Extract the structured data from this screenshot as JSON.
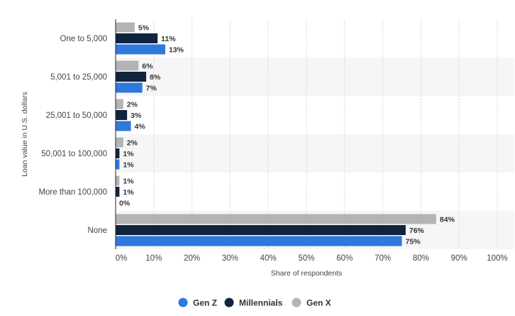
{
  "chart_data": {
    "type": "bar",
    "orientation": "horizontal",
    "categories": [
      "One to 5,000",
      "5,001 to 25,000",
      "25,001 to 50,000",
      "50,001 to 100,000",
      "More than 100,000",
      "None"
    ],
    "series": [
      {
        "name": "Gen X",
        "color": "#b4b4b4",
        "values": [
          5,
          6,
          2,
          2,
          1,
          84
        ],
        "labels": [
          "5%",
          "6%",
          "2%",
          "2%",
          "1%",
          "84%"
        ]
      },
      {
        "name": "Millennials",
        "color": "#10243e",
        "values": [
          11,
          8,
          3,
          1,
          1,
          76
        ],
        "labels": [
          "11%",
          "8%",
          "3%",
          "1%",
          "1%",
          "76%"
        ]
      },
      {
        "name": "Gen Z",
        "color": "#2f78dc",
        "values": [
          13,
          7,
          4,
          1,
          0,
          75
        ],
        "labels": [
          "13%",
          "7%",
          "4%",
          "1%",
          "0%",
          "75%"
        ]
      }
    ],
    "legend_order": [
      "Gen Z",
      "Millennials",
      "Gen X"
    ],
    "legend_position": "bottom",
    "xlabel": "Share of respondents",
    "ylabel": "Loan value in U.S. dollars",
    "xlim": [
      0,
      100
    ],
    "xticks": [
      0,
      10,
      20,
      30,
      40,
      50,
      60,
      70,
      80,
      90,
      100
    ],
    "xtick_labels": [
      "0%",
      "10%",
      "20%",
      "30%",
      "40%",
      "50%",
      "60%",
      "70%",
      "80%",
      "90%",
      "100%"
    ],
    "grid": true,
    "band_color": "#f6f6f6",
    "grid_color": "#d6d6d6",
    "axis_color": "#222222",
    "label_color": "#444444",
    "value_label_color": "#333333"
  }
}
